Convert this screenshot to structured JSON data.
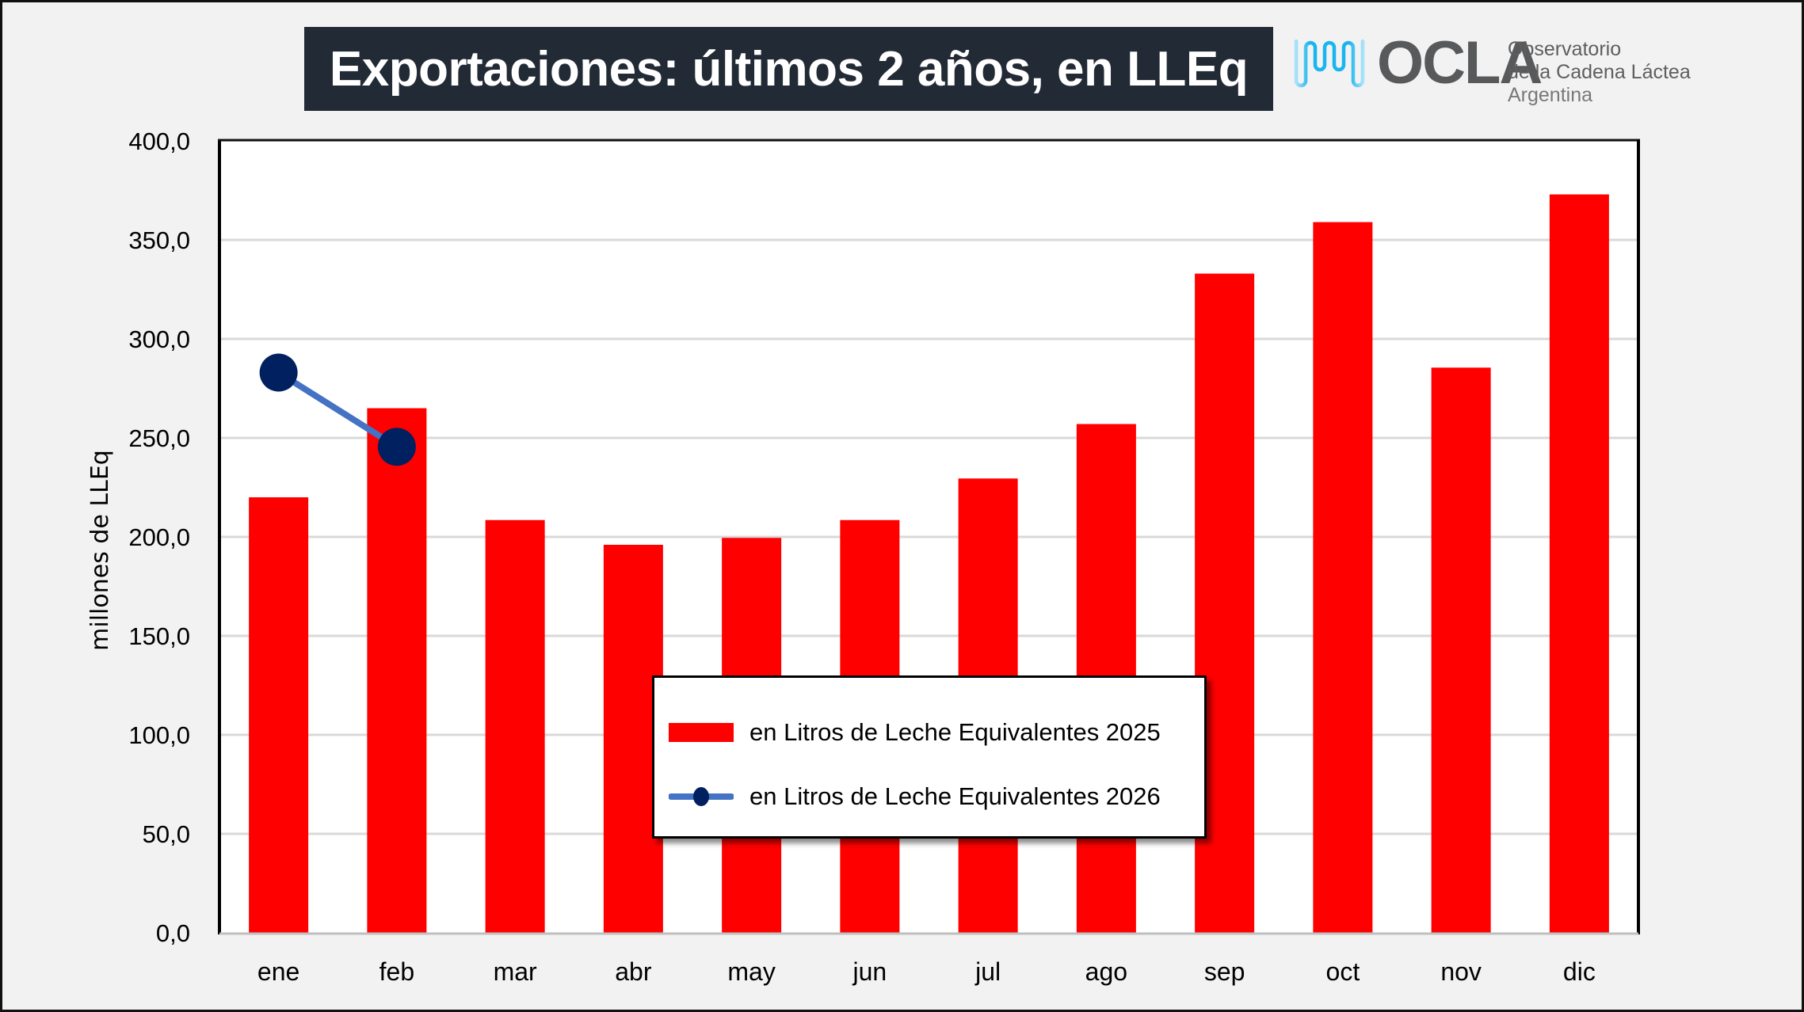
{
  "header": {
    "title": "Exportaciones: últimos 2 años, en LLEq",
    "logo": {
      "name": "OCLA",
      "line1": "Observatorio",
      "line2": "de la Cadena Láctea",
      "line3": "Argentina",
      "wave_color": "#19b5f0",
      "text_color": "#58595b"
    }
  },
  "chart_data": {
    "type": "bar",
    "title": "Exportaciones: últimos 2 años, en LLEq",
    "xlabel": "",
    "ylabel": "millones de LLEq",
    "ylim": [
      0,
      400
    ],
    "yticks": [
      0,
      50,
      100,
      150,
      200,
      250,
      300,
      350,
      400
    ],
    "ytick_labels": [
      "0,0",
      "50,0",
      "100,0",
      "150,0",
      "200,0",
      "250,0",
      "300,0",
      "350,0",
      "400,0"
    ],
    "grid": true,
    "legend_position": "center-bottom",
    "categories": [
      "ene",
      "feb",
      "mar",
      "abr",
      "may",
      "jun",
      "jul",
      "ago",
      "sep",
      "oct",
      "nov",
      "dic"
    ],
    "series": [
      {
        "name": "en Litros de Leche Equivalentes 2025",
        "type": "bar",
        "color": "#ff0000",
        "values": [
          220.0,
          265.0,
          208.5,
          196.0,
          199.5,
          208.5,
          229.5,
          257.0,
          333.0,
          359.0,
          285.5,
          373.0
        ]
      },
      {
        "name": "en Litros de Leche Equivalentes 2026",
        "type": "line",
        "color": "#4472c4",
        "marker_color": "#002060",
        "values": [
          283.0,
          245.5,
          null,
          null,
          null,
          null,
          null,
          null,
          null,
          null,
          null,
          null
        ]
      }
    ]
  }
}
